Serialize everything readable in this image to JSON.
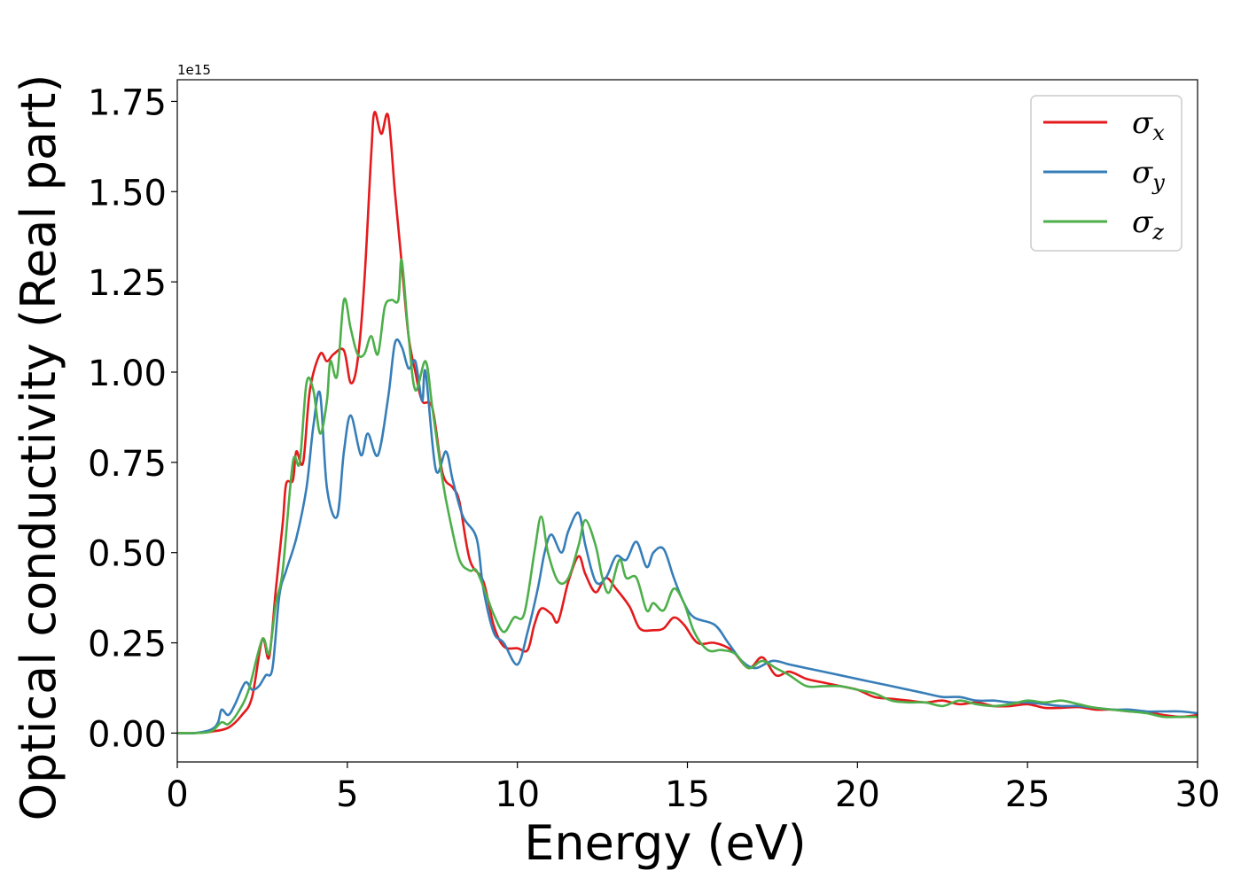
{
  "chart_data": {
    "type": "line",
    "title": "",
    "xlabel": "Energy (eV)",
    "ylabel": "Optical conductivity (Real part)",
    "y_offset_label": "1e15",
    "xlim": [
      0,
      30
    ],
    "ylim": [
      -0.08,
      1.81
    ],
    "x_ticks": [
      0,
      5,
      10,
      15,
      20,
      25,
      30
    ],
    "x_tick_labels": [
      "0",
      "5",
      "10",
      "15",
      "20",
      "25",
      "30"
    ],
    "y_ticks": [
      0.0,
      0.25,
      0.5,
      0.75,
      1.0,
      1.25,
      1.5,
      1.75
    ],
    "y_tick_labels": [
      "0.00",
      "0.25",
      "0.50",
      "0.75",
      "1.00",
      "1.25",
      "1.50",
      "1.75"
    ],
    "grid": false,
    "legend_position": "top-right",
    "series": [
      {
        "name": "σx",
        "legend_symbol": "σ",
        "legend_sub": "x",
        "color": "#e41a1c",
        "points": [
          [
            0,
            0
          ],
          [
            0.5,
            0
          ],
          [
            1,
            0.004
          ],
          [
            1.5,
            0.015
          ],
          [
            1.9,
            0.05
          ],
          [
            2.2,
            0.1
          ],
          [
            2.5,
            0.26
          ],
          [
            2.7,
            0.21
          ],
          [
            2.9,
            0.4
          ],
          [
            3.1,
            0.58
          ],
          [
            3.2,
            0.69
          ],
          [
            3.4,
            0.7
          ],
          [
            3.5,
            0.78
          ],
          [
            3.7,
            0.75
          ],
          [
            3.9,
            0.95
          ],
          [
            4.2,
            1.05
          ],
          [
            4.4,
            1.03
          ],
          [
            4.6,
            1.05
          ],
          [
            4.9,
            1.06
          ],
          [
            5.1,
            0.97
          ],
          [
            5.3,
            1.03
          ],
          [
            5.5,
            1.25
          ],
          [
            5.7,
            1.6
          ],
          [
            5.8,
            1.72
          ],
          [
            6.0,
            1.66
          ],
          [
            6.2,
            1.71
          ],
          [
            6.4,
            1.5
          ],
          [
            6.6,
            1.3
          ],
          [
            6.8,
            1.1
          ],
          [
            7.0,
            1.0
          ],
          [
            7.2,
            0.92
          ],
          [
            7.5,
            0.9
          ],
          [
            7.8,
            0.72
          ],
          [
            8.1,
            0.68
          ],
          [
            8.3,
            0.64
          ],
          [
            8.6,
            0.48
          ],
          [
            9.0,
            0.42
          ],
          [
            9.3,
            0.3
          ],
          [
            9.6,
            0.24
          ],
          [
            10.0,
            0.235
          ],
          [
            10.3,
            0.23
          ],
          [
            10.5,
            0.3
          ],
          [
            10.7,
            0.345
          ],
          [
            11.0,
            0.33
          ],
          [
            11.2,
            0.31
          ],
          [
            11.5,
            0.42
          ],
          [
            11.8,
            0.49
          ],
          [
            12.0,
            0.44
          ],
          [
            12.3,
            0.39
          ],
          [
            12.6,
            0.43
          ],
          [
            12.9,
            0.4
          ],
          [
            13.3,
            0.35
          ],
          [
            13.6,
            0.29
          ],
          [
            14.0,
            0.285
          ],
          [
            14.3,
            0.29
          ],
          [
            14.6,
            0.32
          ],
          [
            14.9,
            0.3
          ],
          [
            15.3,
            0.25
          ],
          [
            15.8,
            0.25
          ],
          [
            16.3,
            0.23
          ],
          [
            16.8,
            0.18
          ],
          [
            17.2,
            0.21
          ],
          [
            17.6,
            0.16
          ],
          [
            18.0,
            0.17
          ],
          [
            18.5,
            0.15
          ],
          [
            19.0,
            0.14
          ],
          [
            19.5,
            0.13
          ],
          [
            20,
            0.12
          ],
          [
            20.5,
            0.1
          ],
          [
            21,
            0.095
          ],
          [
            21.5,
            0.09
          ],
          [
            22,
            0.085
          ],
          [
            22.5,
            0.09
          ],
          [
            23,
            0.08
          ],
          [
            23.5,
            0.085
          ],
          [
            24,
            0.075
          ],
          [
            24.5,
            0.075
          ],
          [
            25,
            0.08
          ],
          [
            25.5,
            0.07
          ],
          [
            26,
            0.07
          ],
          [
            26.5,
            0.072
          ],
          [
            27,
            0.065
          ],
          [
            27.5,
            0.065
          ],
          [
            28,
            0.06
          ],
          [
            28.5,
            0.058
          ],
          [
            29,
            0.05
          ],
          [
            29.5,
            0.045
          ],
          [
            30,
            0.05
          ]
        ]
      },
      {
        "name": "σy",
        "legend_symbol": "σ",
        "legend_sub": "y",
        "color": "#377eb8",
        "points": [
          [
            0,
            0
          ],
          [
            0.5,
            0
          ],
          [
            1,
            0.01
          ],
          [
            1.2,
            0.03
          ],
          [
            1.3,
            0.065
          ],
          [
            1.5,
            0.05
          ],
          [
            1.7,
            0.08
          ],
          [
            2.0,
            0.14
          ],
          [
            2.2,
            0.12
          ],
          [
            2.4,
            0.13
          ],
          [
            2.6,
            0.16
          ],
          [
            2.8,
            0.18
          ],
          [
            3.0,
            0.38
          ],
          [
            3.2,
            0.45
          ],
          [
            3.5,
            0.54
          ],
          [
            3.8,
            0.68
          ],
          [
            4.0,
            0.85
          ],
          [
            4.2,
            0.94
          ],
          [
            4.4,
            0.68
          ],
          [
            4.7,
            0.6
          ],
          [
            4.9,
            0.78
          ],
          [
            5.1,
            0.88
          ],
          [
            5.4,
            0.77
          ],
          [
            5.6,
            0.83
          ],
          [
            5.9,
            0.77
          ],
          [
            6.2,
            0.93
          ],
          [
            6.4,
            1.08
          ],
          [
            6.6,
            1.07
          ],
          [
            6.8,
            1.01
          ],
          [
            7.0,
            1.03
          ],
          [
            7.2,
            0.92
          ],
          [
            7.3,
            1.0
          ],
          [
            7.6,
            0.73
          ],
          [
            7.9,
            0.78
          ],
          [
            8.1,
            0.7
          ],
          [
            8.4,
            0.6
          ],
          [
            8.8,
            0.54
          ],
          [
            9.0,
            0.4
          ],
          [
            9.3,
            0.28
          ],
          [
            9.6,
            0.25
          ],
          [
            10.0,
            0.19
          ],
          [
            10.3,
            0.28
          ],
          [
            10.6,
            0.4
          ],
          [
            10.8,
            0.5
          ],
          [
            11.0,
            0.55
          ],
          [
            11.3,
            0.5
          ],
          [
            11.5,
            0.56
          ],
          [
            11.8,
            0.61
          ],
          [
            12.0,
            0.52
          ],
          [
            12.3,
            0.42
          ],
          [
            12.6,
            0.43
          ],
          [
            12.9,
            0.49
          ],
          [
            13.2,
            0.48
          ],
          [
            13.5,
            0.53
          ],
          [
            13.8,
            0.46
          ],
          [
            14.0,
            0.5
          ],
          [
            14.3,
            0.51
          ],
          [
            14.6,
            0.43
          ],
          [
            14.9,
            0.36
          ],
          [
            15.2,
            0.32
          ],
          [
            15.8,
            0.3
          ],
          [
            16.2,
            0.25
          ],
          [
            16.6,
            0.2
          ],
          [
            17.0,
            0.18
          ],
          [
            17.5,
            0.2
          ],
          [
            18,
            0.19
          ],
          [
            18.5,
            0.18
          ],
          [
            19,
            0.17
          ],
          [
            19.5,
            0.16
          ],
          [
            20,
            0.15
          ],
          [
            20.5,
            0.14
          ],
          [
            21,
            0.13
          ],
          [
            21.5,
            0.12
          ],
          [
            22,
            0.11
          ],
          [
            22.5,
            0.1
          ],
          [
            23,
            0.1
          ],
          [
            23.5,
            0.09
          ],
          [
            24,
            0.09
          ],
          [
            24.5,
            0.085
          ],
          [
            25,
            0.085
          ],
          [
            25.5,
            0.08
          ],
          [
            26,
            0.075
          ],
          [
            26.5,
            0.075
          ],
          [
            27,
            0.07
          ],
          [
            27.5,
            0.065
          ],
          [
            28,
            0.065
          ],
          [
            28.5,
            0.06
          ],
          [
            29,
            0.06
          ],
          [
            29.5,
            0.06
          ],
          [
            30,
            0.055
          ]
        ]
      },
      {
        "name": "σz",
        "legend_symbol": "σ",
        "legend_sub": "z",
        "color": "#4daf4a",
        "points": [
          [
            0,
            0
          ],
          [
            0.5,
            0
          ],
          [
            1,
            0.005
          ],
          [
            1.3,
            0.03
          ],
          [
            1.5,
            0.025
          ],
          [
            1.8,
            0.06
          ],
          [
            2.1,
            0.12
          ],
          [
            2.5,
            0.26
          ],
          [
            2.7,
            0.22
          ],
          [
            2.9,
            0.36
          ],
          [
            3.1,
            0.45
          ],
          [
            3.4,
            0.75
          ],
          [
            3.6,
            0.75
          ],
          [
            3.8,
            0.97
          ],
          [
            4.0,
            0.95
          ],
          [
            4.2,
            0.83
          ],
          [
            4.4,
            0.92
          ],
          [
            4.5,
            1.03
          ],
          [
            4.7,
            0.99
          ],
          [
            4.9,
            1.2
          ],
          [
            5.1,
            1.12
          ],
          [
            5.3,
            1.05
          ],
          [
            5.5,
            1.05
          ],
          [
            5.7,
            1.1
          ],
          [
            5.9,
            1.05
          ],
          [
            6.1,
            1.18
          ],
          [
            6.3,
            1.2
          ],
          [
            6.5,
            1.2
          ],
          [
            6.6,
            1.31
          ],
          [
            6.8,
            1.1
          ],
          [
            7.0,
            0.95
          ],
          [
            7.3,
            1.03
          ],
          [
            7.5,
            0.9
          ],
          [
            7.8,
            0.7
          ],
          [
            8.0,
            0.6
          ],
          [
            8.3,
            0.48
          ],
          [
            8.6,
            0.45
          ],
          [
            8.8,
            0.45
          ],
          [
            9.1,
            0.38
          ],
          [
            9.3,
            0.33
          ],
          [
            9.6,
            0.28
          ],
          [
            9.9,
            0.32
          ],
          [
            10.2,
            0.33
          ],
          [
            10.5,
            0.5
          ],
          [
            10.7,
            0.6
          ],
          [
            10.9,
            0.5
          ],
          [
            11.2,
            0.42
          ],
          [
            11.5,
            0.43
          ],
          [
            11.8,
            0.52
          ],
          [
            12.0,
            0.59
          ],
          [
            12.3,
            0.52
          ],
          [
            12.5,
            0.43
          ],
          [
            12.7,
            0.39
          ],
          [
            13.0,
            0.48
          ],
          [
            13.2,
            0.43
          ],
          [
            13.5,
            0.43
          ],
          [
            13.8,
            0.34
          ],
          [
            14.0,
            0.36
          ],
          [
            14.3,
            0.34
          ],
          [
            14.6,
            0.4
          ],
          [
            14.9,
            0.36
          ],
          [
            15.2,
            0.28
          ],
          [
            15.6,
            0.23
          ],
          [
            16.0,
            0.23
          ],
          [
            16.4,
            0.22
          ],
          [
            16.8,
            0.18
          ],
          [
            17.2,
            0.2
          ],
          [
            17.6,
            0.18
          ],
          [
            18,
            0.16
          ],
          [
            18.5,
            0.13
          ],
          [
            19,
            0.13
          ],
          [
            19.5,
            0.13
          ],
          [
            20,
            0.12
          ],
          [
            20.5,
            0.11
          ],
          [
            21,
            0.09
          ],
          [
            21.5,
            0.085
          ],
          [
            22,
            0.085
          ],
          [
            22.5,
            0.075
          ],
          [
            23,
            0.09
          ],
          [
            23.5,
            0.08
          ],
          [
            24,
            0.075
          ],
          [
            24.5,
            0.08
          ],
          [
            25,
            0.09
          ],
          [
            25.5,
            0.085
          ],
          [
            26,
            0.09
          ],
          [
            26.5,
            0.08
          ],
          [
            27,
            0.07
          ],
          [
            27.5,
            0.065
          ],
          [
            28,
            0.06
          ],
          [
            28.5,
            0.055
          ],
          [
            29,
            0.045
          ],
          [
            29.5,
            0.045
          ],
          [
            30,
            0.045
          ]
        ]
      }
    ]
  }
}
